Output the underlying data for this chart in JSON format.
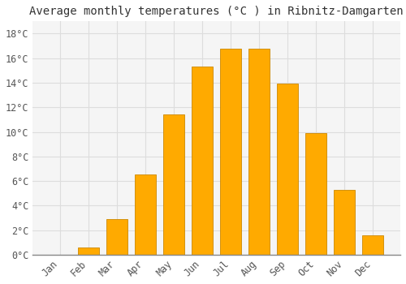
{
  "title": "Average monthly temperatures (°C ) in Ribnitz-Damgarten",
  "months": [
    "Jan",
    "Feb",
    "Mar",
    "Apr",
    "May",
    "Jun",
    "Jul",
    "Aug",
    "Sep",
    "Oct",
    "Nov",
    "Dec"
  ],
  "values": [
    0.0,
    0.6,
    2.9,
    6.5,
    11.4,
    15.3,
    16.8,
    16.8,
    13.9,
    9.9,
    5.3,
    1.6
  ],
  "bar_color": "#FFAA00",
  "bar_edge_color": "#CC8800",
  "background_color": "#FFFFFF",
  "plot_bg_color": "#F5F5F5",
  "grid_color": "#DDDDDD",
  "ylim": [
    0,
    19
  ],
  "yticks": [
    0,
    2,
    4,
    6,
    8,
    10,
    12,
    14,
    16,
    18
  ],
  "title_fontsize": 10,
  "tick_fontsize": 8.5
}
